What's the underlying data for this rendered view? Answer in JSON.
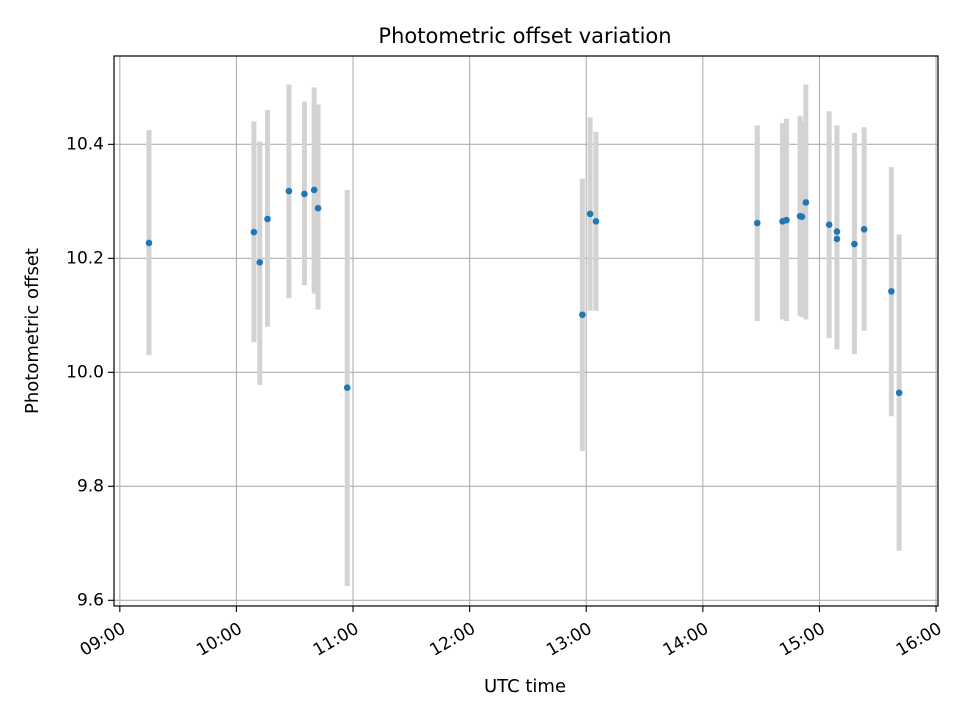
{
  "chart_data": {
    "type": "scatter",
    "title": "Photometric offset variation",
    "xlabel": "UTC time",
    "ylabel": "Photometric offset",
    "x_unit": "UTC time of day",
    "xlim": [
      "08:57",
      "16:01"
    ],
    "ylim": [
      9.59,
      10.555
    ],
    "x_ticks": [
      "09:00",
      "10:00",
      "11:00",
      "12:00",
      "13:00",
      "14:00",
      "15:00",
      "16:00"
    ],
    "y_ticks": [
      "9.6",
      "9.8",
      "10.0",
      "10.2",
      "10.4"
    ],
    "grid": true,
    "legend": "none",
    "colors": {
      "point": "#1f77b4",
      "errorbar": "#d3d3d3",
      "grid": "#b0b0b0"
    },
    "series": [
      {
        "points": [
          {
            "x": "09:15",
            "y": 10.227,
            "ylow": 10.03,
            "yhigh": 10.425
          },
          {
            "x": "10:09",
            "y": 10.246,
            "ylow": 10.053,
            "yhigh": 10.44
          },
          {
            "x": "10:12",
            "y": 10.193,
            "ylow": 9.978,
            "yhigh": 10.405
          },
          {
            "x": "10:16",
            "y": 10.269,
            "ylow": 10.08,
            "yhigh": 10.46
          },
          {
            "x": "10:27",
            "y": 10.318,
            "ylow": 10.13,
            "yhigh": 10.505
          },
          {
            "x": "10:35",
            "y": 10.313,
            "ylow": 10.153,
            "yhigh": 10.475
          },
          {
            "x": "10:40",
            "y": 10.32,
            "ylow": 10.138,
            "yhigh": 10.5
          },
          {
            "x": "10:42",
            "y": 10.288,
            "ylow": 10.11,
            "yhigh": 10.47
          },
          {
            "x": "10:57",
            "y": 9.973,
            "ylow": 9.625,
            "yhigh": 10.32
          },
          {
            "x": "12:58",
            "y": 10.101,
            "ylow": 9.862,
            "yhigh": 10.34
          },
          {
            "x": "13:02",
            "y": 10.278,
            "ylow": 10.108,
            "yhigh": 10.447
          },
          {
            "x": "13:05",
            "y": 10.265,
            "ylow": 10.108,
            "yhigh": 10.422
          },
          {
            "x": "14:28",
            "y": 10.262,
            "ylow": 10.09,
            "yhigh": 10.433
          },
          {
            "x": "14:41",
            "y": 10.265,
            "ylow": 10.093,
            "yhigh": 10.437
          },
          {
            "x": "14:43",
            "y": 10.267,
            "ylow": 10.09,
            "yhigh": 10.445
          },
          {
            "x": "14:50",
            "y": 10.274,
            "ylow": 10.1,
            "yhigh": 10.45
          },
          {
            "x": "14:51",
            "y": 10.273,
            "ylow": 10.097,
            "yhigh": 10.44
          },
          {
            "x": "14:53",
            "y": 10.298,
            "ylow": 10.093,
            "yhigh": 10.505
          },
          {
            "x": "15:05",
            "y": 10.259,
            "ylow": 10.06,
            "yhigh": 10.458
          },
          {
            "x": "15:09",
            "y": 10.234,
            "ylow": 10.04,
            "yhigh": 10.433
          },
          {
            "x": "15:09",
            "y": 10.247,
            "ylow": 10.06,
            "yhigh": 10.433
          },
          {
            "x": "15:18",
            "y": 10.225,
            "ylow": 10.032,
            "yhigh": 10.42
          },
          {
            "x": "15:23",
            "y": 10.251,
            "ylow": 10.073,
            "yhigh": 10.43
          },
          {
            "x": "15:37",
            "y": 10.142,
            "ylow": 9.923,
            "yhigh": 10.36
          },
          {
            "x": "15:41",
            "y": 9.964,
            "ylow": 9.687,
            "yhigh": 10.242
          }
        ]
      }
    ]
  }
}
